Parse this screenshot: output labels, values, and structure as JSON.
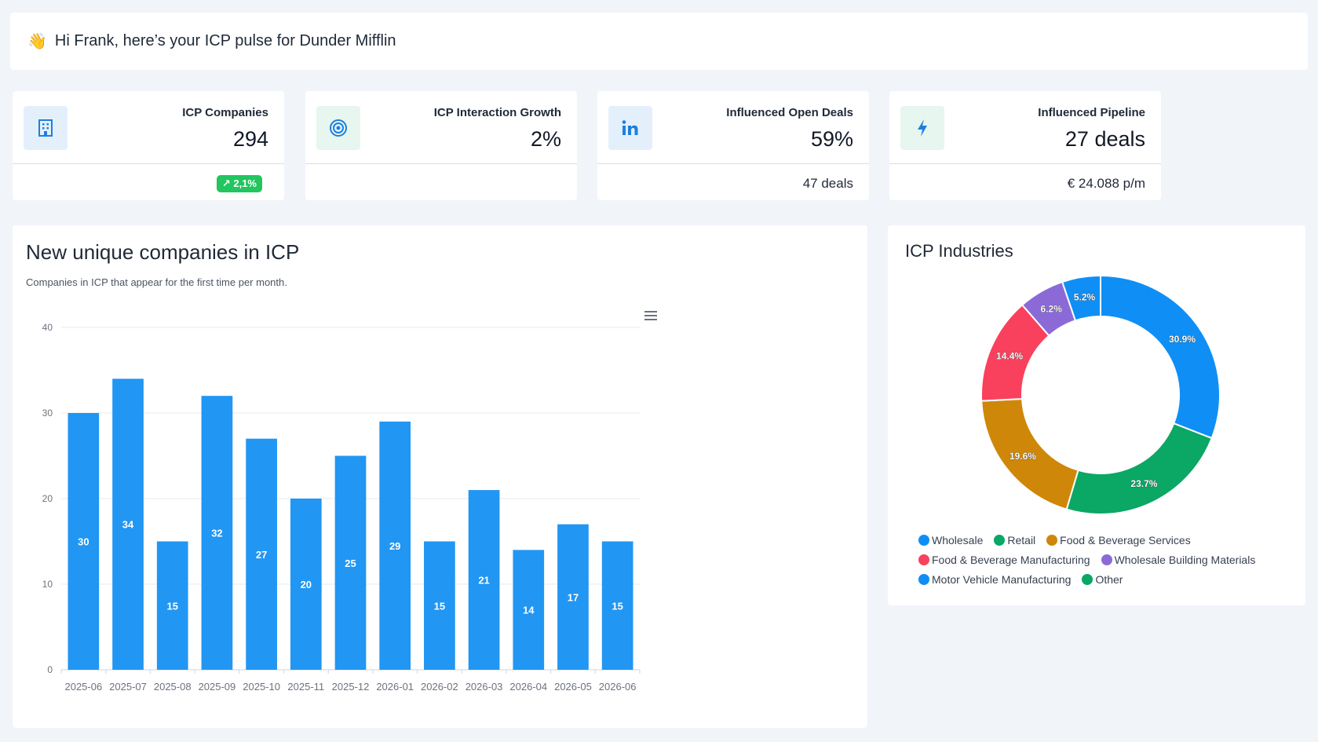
{
  "greeting": {
    "wave_emoji": "👋",
    "text": "Hi Frank, here’s your ICP pulse for Dunder Mifflin"
  },
  "kpis": [
    {
      "label": "ICP Companies",
      "value": "294",
      "badge": "2,1%",
      "icon": "building-icon",
      "icon_color": "#1d7fe0",
      "icon_bg": "#e3f0fc"
    },
    {
      "label": "ICP Interaction Growth",
      "value": "2%",
      "icon": "target-icon",
      "icon_color": "#1d7fe0",
      "icon_bg": "#e7f6ee"
    },
    {
      "label": "Influenced Open Deals",
      "value": "59%",
      "sub": "47 deals",
      "icon": "linkedin-icon",
      "icon_color": "#1d7fe0",
      "icon_bg": "#e3f0fc"
    },
    {
      "label": "Influenced Pipeline",
      "value": "27 deals",
      "sub": "€ 24.088 p/m",
      "icon": "bolt-icon",
      "icon_color": "#1d7fe0",
      "icon_bg": "#e7f6ee"
    }
  ],
  "bar_panel": {
    "title": "New unique companies in ICP",
    "subtitle": "Companies in ICP that appear for the first time per month.",
    "menu_icon": "hamburger-menu-icon"
  },
  "pie_panel": {
    "title": "ICP Industries"
  },
  "chart_data": [
    {
      "type": "bar",
      "title": "New unique companies in ICP",
      "categories": [
        "2025-06",
        "2025-07",
        "2025-08",
        "2025-09",
        "2025-10",
        "2025-11",
        "2025-12",
        "2026-01",
        "2026-02",
        "2026-03",
        "2026-04",
        "2026-05",
        "2026-06"
      ],
      "values": [
        30,
        34,
        15,
        32,
        27,
        20,
        25,
        29,
        15,
        21,
        14,
        17,
        15
      ],
      "yticks": [
        0,
        10,
        20,
        30,
        40
      ],
      "ylim": [
        0,
        40
      ],
      "color": "#2196f3",
      "grid": true
    },
    {
      "type": "pie",
      "title": "ICP Industries",
      "donut": true,
      "slices": [
        {
          "name": "Wholesale",
          "value": 30.9,
          "label": "30.9%",
          "color": "#0f8ff5"
        },
        {
          "name": "Retail",
          "value": 23.7,
          "label": "23.7%",
          "color": "#0aa765"
        },
        {
          "name": "Food & Beverage Services",
          "value": 19.6,
          "label": "19.6%",
          "color": "#cf8709"
        },
        {
          "name": "Food & Beverage Manufacturing",
          "value": 14.4,
          "label": "14.4%",
          "color": "#f9415d"
        },
        {
          "name": "Wholesale Building Materials",
          "value": 6.2,
          "label": "6.2%",
          "color": "#8b6ad8"
        },
        {
          "name": "Motor Vehicle Manufacturing",
          "value": 5.2,
          "label": "5.2%",
          "color": "#0f8ff5"
        },
        {
          "name": "Other",
          "value": 0,
          "label": "",
          "color": "#0aa765"
        }
      ],
      "legend_rows": [
        [
          0,
          1,
          2
        ],
        [
          3,
          4
        ],
        [
          5,
          6
        ]
      ]
    }
  ]
}
